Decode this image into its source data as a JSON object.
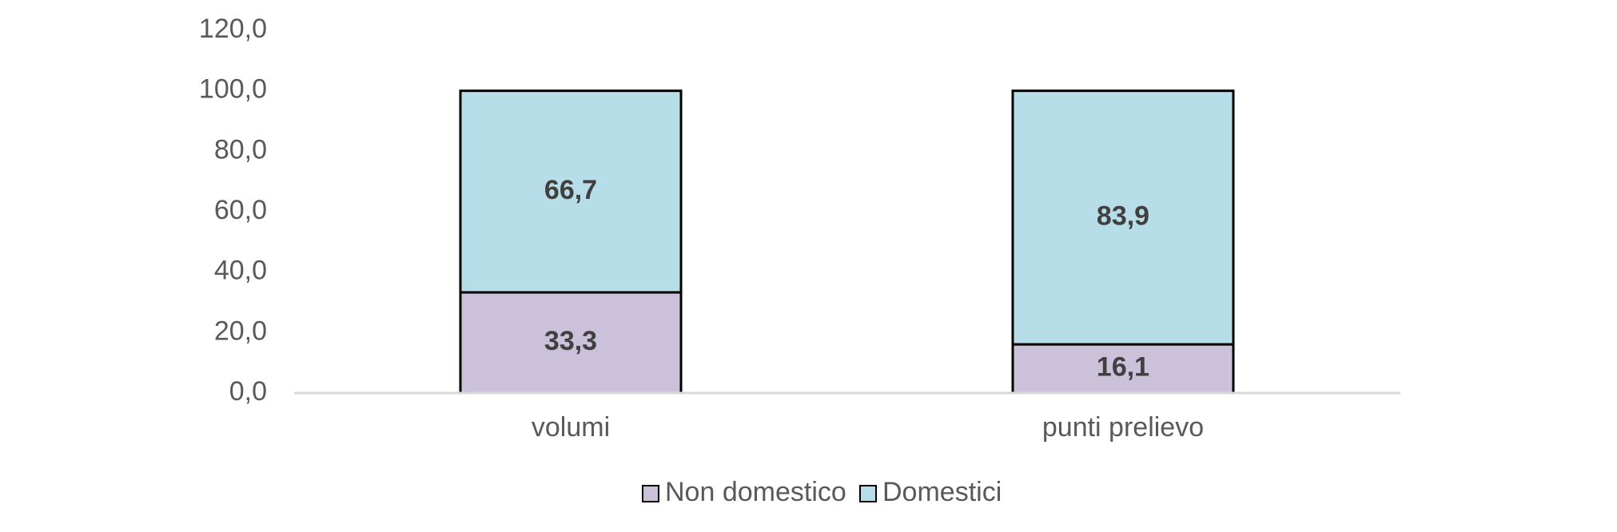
{
  "chart_data": {
    "type": "bar",
    "stacked": true,
    "categories": [
      "volumi",
      "punti prelievo"
    ],
    "series": [
      {
        "name": "Non domestico",
        "values": [
          33.3,
          16.1
        ],
        "labels": [
          "33,3",
          "16,1"
        ],
        "color": "#ccc1da"
      },
      {
        "name": "Domestici",
        "values": [
          66.7,
          83.9
        ],
        "labels": [
          "66,7",
          "83,9"
        ],
        "color": "#b7dde8"
      }
    ],
    "ylim": [
      0,
      120
    ],
    "yticks": [
      0,
      20,
      40,
      60,
      80,
      100,
      120
    ],
    "ytick_labels": [
      "0,0",
      "20,0",
      "40,0",
      "60,0",
      "80,0",
      "100,0",
      "120,0"
    ],
    "title": "",
    "xlabel": "",
    "ylabel": "",
    "grid": false,
    "legend_position": "bottom",
    "bar_outline_color": "#000000",
    "axis_color": "#d9d9d9"
  }
}
